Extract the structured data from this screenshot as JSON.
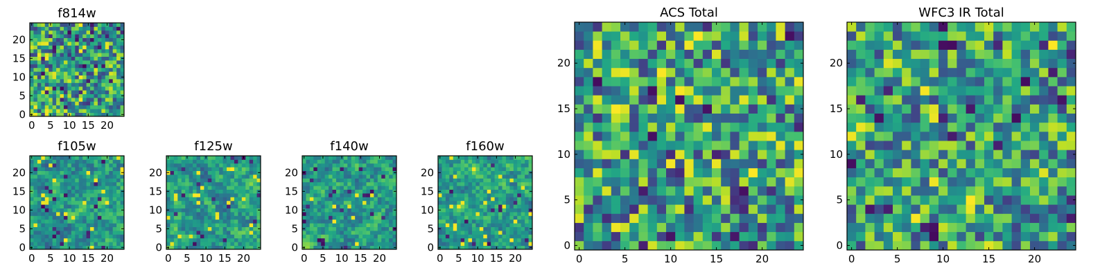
{
  "figure_title": "",
  "chart_data": [
    {
      "type": "heatmap",
      "title": "f814w",
      "x_ticks": [
        0,
        5,
        10,
        15,
        20
      ],
      "y_ticks": [
        0,
        5,
        10,
        15,
        20
      ],
      "xlim": [
        0,
        24
      ],
      "ylim": [
        0,
        24
      ],
      "grid": false,
      "colormap": "viridis",
      "seed": 11,
      "noise": 0.75,
      "smooth": 0.25
    },
    {
      "type": "heatmap",
      "title": "f105w",
      "x_ticks": [
        0,
        5,
        10,
        15,
        20
      ],
      "y_ticks": [
        0,
        5,
        10,
        15,
        20
      ],
      "xlim": [
        0,
        24
      ],
      "ylim": [
        0,
        24
      ],
      "grid": false,
      "colormap": "viridis",
      "seed": 23,
      "noise": 0.55,
      "smooth": 0.55
    },
    {
      "type": "heatmap",
      "title": "f125w",
      "x_ticks": [
        0,
        5,
        10,
        15,
        20
      ],
      "y_ticks": [
        0,
        5,
        10,
        15,
        20
      ],
      "xlim": [
        0,
        24
      ],
      "ylim": [
        0,
        24
      ],
      "grid": false,
      "colormap": "viridis",
      "seed": 37,
      "noise": 0.55,
      "smooth": 0.55
    },
    {
      "type": "heatmap",
      "title": "f140w",
      "x_ticks": [
        0,
        5,
        10,
        15,
        20
      ],
      "y_ticks": [
        0,
        5,
        10,
        15,
        20
      ],
      "xlim": [
        0,
        24
      ],
      "ylim": [
        0,
        24
      ],
      "grid": false,
      "colormap": "viridis",
      "seed": 41,
      "noise": 0.55,
      "smooth": 0.55
    },
    {
      "type": "heatmap",
      "title": "f160w",
      "x_ticks": [
        0,
        5,
        10,
        15,
        20
      ],
      "y_ticks": [
        0,
        5,
        10,
        15,
        20
      ],
      "xlim": [
        0,
        24
      ],
      "ylim": [
        0,
        24
      ],
      "grid": false,
      "colormap": "viridis",
      "seed": 53,
      "noise": 0.55,
      "smooth": 0.55
    },
    {
      "type": "heatmap",
      "title": "ACS Total",
      "x_ticks": [
        0,
        5,
        10,
        15,
        20
      ],
      "y_ticks": [
        0,
        5,
        10,
        15,
        20
      ],
      "xlim": [
        0,
        24
      ],
      "ylim": [
        0,
        24
      ],
      "grid": false,
      "colormap": "viridis",
      "seed": 67,
      "noise": 0.7,
      "smooth": 0.1
    },
    {
      "type": "heatmap",
      "title": "WFC3 IR Total",
      "x_ticks": [
        0,
        5,
        10,
        15,
        20
      ],
      "y_ticks": [
        0,
        5,
        10,
        15,
        20
      ],
      "xlim": [
        0,
        24
      ],
      "ylim": [
        0,
        24
      ],
      "grid": false,
      "colormap": "viridis",
      "seed": 79,
      "noise": 0.6,
      "smooth": 0.1
    }
  ]
}
